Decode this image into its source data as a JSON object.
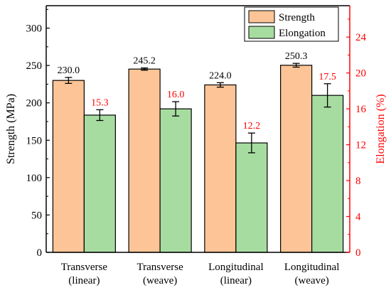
{
  "chart_data": {
    "type": "bar",
    "categories": [
      [
        "Transverse",
        "(linear)"
      ],
      [
        "Transverse",
        "(weave)"
      ],
      [
        "Longitudinal",
        "(linear)"
      ],
      [
        "Longitudinal",
        "(weave)"
      ]
    ],
    "xlabel": "",
    "ylabel_left": "Strength (MPa)",
    "ylabel_right": "Elongation (%)",
    "y_left": {
      "min": 0,
      "max": 330,
      "ticks": [
        0,
        50,
        100,
        150,
        200,
        250,
        300
      ]
    },
    "y_right": {
      "min": 0,
      "max": 27.5,
      "ticks": [
        0,
        4,
        8,
        12,
        16,
        20,
        24
      ]
    },
    "legend_position": "top-right",
    "series": [
      {
        "name": "Strength",
        "axis": "left",
        "color": "#FDC597",
        "label_color": "#000000",
        "values": [
          230.0,
          245.2,
          224.0,
          250.3
        ],
        "labels": [
          "230.0",
          "245.2",
          "224.0",
          "250.3"
        ],
        "errors": [
          4,
          1.5,
          3,
          2.5
        ]
      },
      {
        "name": "Elongation",
        "axis": "right",
        "color": "#A7DCA1",
        "label_color": "#FF0000",
        "values": [
          15.3,
          16.0,
          12.2,
          17.5
        ],
        "labels": [
          "15.3",
          "16.0",
          "12.2",
          "17.5"
        ],
        "errors": [
          0.6,
          0.8,
          1.1,
          1.3
        ]
      }
    ],
    "colors": {
      "left_axis": "#000000",
      "right_axis": "#FF0000"
    }
  }
}
